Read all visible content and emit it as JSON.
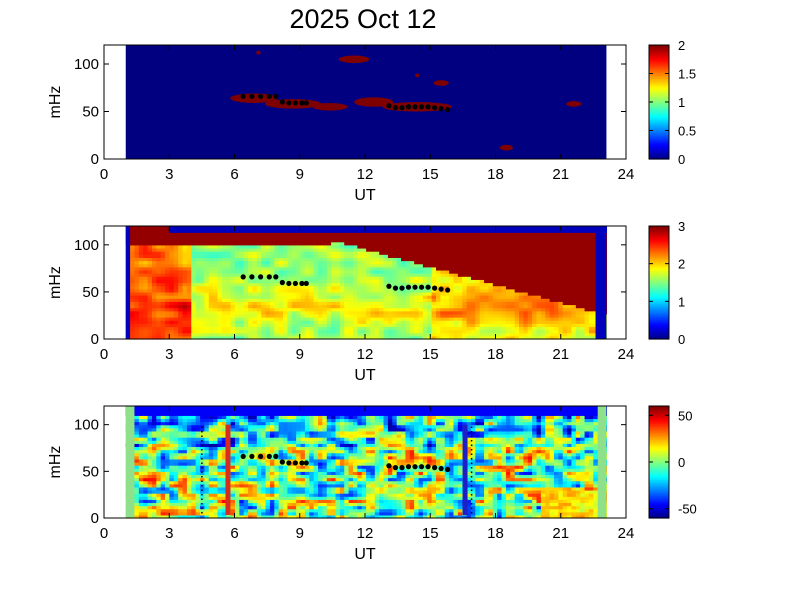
{
  "figure": {
    "title": "2025 Oct 12"
  },
  "chart_data": [
    {
      "type": "heatmap",
      "xlabel": "UT",
      "ylabel": "mHz",
      "xlim": [
        0,
        24
      ],
      "ylim": [
        0,
        120
      ],
      "xticks": [
        "0",
        "3",
        "6",
        "9",
        "12",
        "15",
        "18",
        "21",
        "24"
      ],
      "yticks": [
        "0",
        "50",
        "100"
      ],
      "data_x_range": [
        1.0,
        23.1
      ],
      "colorbar": {
        "range": [
          0,
          2
        ],
        "ticks": [
          "0",
          "0.5",
          "1",
          "1.5",
          "2"
        ]
      },
      "background_value": 0,
      "blobs": [
        {
          "x": 6.9,
          "y": 64,
          "rx": 1.1,
          "ry": 5
        },
        {
          "x": 8.7,
          "y": 58,
          "rx": 1.3,
          "ry": 5
        },
        {
          "x": 10.4,
          "y": 55,
          "rx": 0.8,
          "ry": 4
        },
        {
          "x": 12.4,
          "y": 60,
          "rx": 0.9,
          "ry": 5
        },
        {
          "x": 14.4,
          "y": 55,
          "rx": 1.6,
          "ry": 5
        },
        {
          "x": 11.5,
          "y": 105,
          "rx": 0.7,
          "ry": 4
        },
        {
          "x": 15.5,
          "y": 80,
          "rx": 0.35,
          "ry": 3
        },
        {
          "x": 18.5,
          "y": 12,
          "rx": 0.3,
          "ry": 3
        },
        {
          "x": 21.6,
          "y": 58,
          "rx": 0.35,
          "ry": 3
        },
        {
          "x": 7.1,
          "y": 112,
          "rx": 0.1,
          "ry": 2
        },
        {
          "x": 14.4,
          "y": 88,
          "rx": 0.1,
          "ry": 2
        }
      ],
      "track": [
        [
          6.4,
          66
        ],
        [
          6.8,
          66
        ],
        [
          7.2,
          66
        ],
        [
          7.6,
          66
        ],
        [
          7.9,
          66
        ],
        [
          8.2,
          60
        ],
        [
          8.5,
          59
        ],
        [
          8.8,
          59
        ],
        [
          9.1,
          59
        ],
        [
          9.3,
          59
        ],
        [
          13.1,
          56
        ],
        [
          13.4,
          54
        ],
        [
          13.7,
          54
        ],
        [
          14.0,
          55
        ],
        [
          14.3,
          55
        ],
        [
          14.6,
          55
        ],
        [
          14.9,
          55
        ],
        [
          15.2,
          54
        ],
        [
          15.5,
          53
        ],
        [
          15.8,
          52
        ]
      ]
    },
    {
      "type": "heatmap",
      "xlabel": "UT",
      "ylabel": "mHz",
      "xlim": [
        0,
        24
      ],
      "ylim": [
        0,
        120
      ],
      "xticks": [
        "0",
        "3",
        "6",
        "9",
        "12",
        "15",
        "18",
        "21",
        "24"
      ],
      "yticks": [
        "0",
        "50",
        "100"
      ],
      "data_x_range": [
        1.0,
        23.1
      ],
      "colorbar": {
        "range": [
          0,
          3
        ],
        "ticks": [
          "0",
          "1",
          "2",
          "3"
        ]
      },
      "background_value": 0,
      "track": [
        [
          6.4,
          66
        ],
        [
          6.8,
          66
        ],
        [
          7.2,
          66
        ],
        [
          7.6,
          66
        ],
        [
          7.9,
          66
        ],
        [
          8.2,
          60
        ],
        [
          8.5,
          59
        ],
        [
          8.8,
          59
        ],
        [
          9.1,
          59
        ],
        [
          9.3,
          59
        ],
        [
          13.1,
          56
        ],
        [
          13.4,
          54
        ],
        [
          13.7,
          54
        ],
        [
          14.0,
          55
        ],
        [
          14.3,
          55
        ],
        [
          14.6,
          55
        ],
        [
          14.9,
          55
        ],
        [
          15.2,
          54
        ],
        [
          15.5,
          53
        ],
        [
          15.8,
          52
        ]
      ]
    },
    {
      "type": "heatmap",
      "xlabel": "UT",
      "ylabel": "mHz",
      "xlim": [
        0,
        24
      ],
      "ylim": [
        0,
        120
      ],
      "xticks": [
        "0",
        "3",
        "6",
        "9",
        "12",
        "15",
        "18",
        "21",
        "24"
      ],
      "yticks": [
        "0",
        "50",
        "100"
      ],
      "data_x_range": [
        1.0,
        23.1
      ],
      "colorbar": {
        "range": [
          -60,
          60
        ],
        "ticks": [
          "50",
          "0",
          "-50"
        ]
      },
      "markers": [
        {
          "time": 5.7,
          "color": "#d62d20",
          "style": "solid"
        },
        {
          "time": 16.6,
          "color": "#1f1fc8",
          "style": "solid"
        },
        {
          "time": 4.5,
          "color": "#000000",
          "style": "dotted"
        },
        {
          "time": 16.9,
          "color": "#000000",
          "style": "dotted"
        }
      ],
      "track": [
        [
          6.4,
          66
        ],
        [
          6.8,
          66
        ],
        [
          7.2,
          66
        ],
        [
          7.6,
          66
        ],
        [
          7.9,
          66
        ],
        [
          8.2,
          60
        ],
        [
          8.5,
          59
        ],
        [
          8.8,
          59
        ],
        [
          9.1,
          59
        ],
        [
          9.3,
          59
        ],
        [
          13.1,
          56
        ],
        [
          13.4,
          54
        ],
        [
          13.7,
          54
        ],
        [
          14.0,
          55
        ],
        [
          14.3,
          55
        ],
        [
          14.6,
          55
        ],
        [
          14.9,
          55
        ],
        [
          15.2,
          54
        ],
        [
          15.5,
          53
        ],
        [
          15.8,
          52
        ]
      ]
    }
  ]
}
